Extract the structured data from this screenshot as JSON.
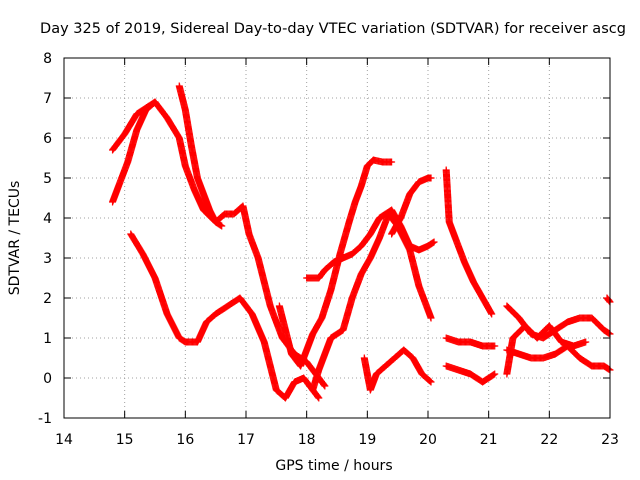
{
  "chart_data": {
    "type": "scatter",
    "title": "Day 325 of 2019, Sidereal Day-to-day VTEC variation (SDTVAR) for receiver ascg",
    "xlabel": "GPS time / hours",
    "ylabel": "SDTVAR / TECUs",
    "xlim": [
      14,
      23
    ],
    "ylim": [
      -1,
      8
    ],
    "xticks": [
      14,
      15,
      16,
      17,
      18,
      19,
      20,
      21,
      22,
      23
    ],
    "yticks": [
      -1,
      0,
      1,
      2,
      3,
      4,
      5,
      6,
      7,
      8
    ],
    "grid": true,
    "marker": "+",
    "color": "#ff0000",
    "series": [
      {
        "x": [
          14.8,
          15.0,
          15.2,
          15.3,
          15.5,
          15.7,
          15.9,
          16.0,
          16.15,
          16.3,
          16.5,
          16.65,
          16.8,
          16.95,
          17.05,
          17.2,
          17.4,
          17.6,
          17.8,
          18.0,
          18.2,
          18.3
        ],
        "y": [
          5.7,
          6.1,
          6.6,
          6.7,
          6.9,
          6.5,
          6.0,
          5.3,
          4.7,
          4.2,
          3.9,
          4.1,
          4.1,
          4.3,
          3.6,
          3.0,
          1.8,
          1.0,
          0.6,
          0.4,
          0.0,
          -0.2
        ]
      },
      {
        "x": [
          14.8,
          14.9,
          15.05,
          15.2,
          15.35,
          15.5
        ],
        "y": [
          4.4,
          4.8,
          5.4,
          6.2,
          6.7,
          6.9
        ]
      },
      {
        "x": [
          15.9,
          16.0,
          16.1,
          16.2,
          16.3,
          16.4,
          16.5,
          16.6
        ],
        "y": [
          7.3,
          6.7,
          5.8,
          5.0,
          4.6,
          4.2,
          3.9,
          3.8
        ]
      },
      {
        "x": [
          15.1,
          15.3,
          15.5,
          15.7,
          15.9,
          16.0,
          16.2,
          16.35,
          16.5,
          16.7,
          16.9,
          17.1,
          17.3,
          17.5,
          17.65,
          17.8,
          17.95,
          18.1,
          18.2
        ],
        "y": [
          3.6,
          3.1,
          2.5,
          1.6,
          1.0,
          0.9,
          0.9,
          1.4,
          1.6,
          1.8,
          2.0,
          1.6,
          0.9,
          -0.3,
          -0.5,
          -0.1,
          0.0,
          -0.3,
          -0.5
        ]
      },
      {
        "x": [
          17.55,
          17.65,
          17.75,
          17.9,
          18.0,
          18.1,
          18.25,
          18.4,
          18.55,
          18.7,
          18.8,
          18.9,
          19.0,
          19.1,
          19.25,
          19.4
        ],
        "y": [
          1.8,
          1.2,
          0.6,
          0.3,
          0.7,
          1.1,
          1.5,
          2.2,
          3.1,
          3.9,
          4.4,
          4.8,
          5.3,
          5.45,
          5.4,
          5.4
        ]
      },
      {
        "x": [
          18.0,
          18.1,
          18.2,
          18.3,
          18.45,
          18.6,
          18.75,
          18.9,
          19.05,
          19.2,
          19.4,
          19.55,
          19.7,
          19.85,
          20.0,
          20.1
        ],
        "y": [
          2.5,
          2.5,
          2.5,
          2.7,
          2.9,
          3.0,
          3.1,
          3.3,
          3.6,
          4.0,
          4.2,
          3.8,
          3.3,
          3.2,
          3.3,
          3.4
        ]
      },
      {
        "x": [
          18.1,
          18.2,
          18.3,
          18.4,
          18.5,
          18.6,
          18.75,
          18.9,
          19.05,
          19.2,
          19.35,
          19.5,
          19.7,
          19.85,
          20.0,
          20.05
        ],
        "y": [
          -0.3,
          0.2,
          0.6,
          1.0,
          1.1,
          1.2,
          2.0,
          2.6,
          3.0,
          3.5,
          4.1,
          3.8,
          3.2,
          2.3,
          1.7,
          1.5
        ]
      },
      {
        "x": [
          19.4,
          19.55,
          19.7,
          19.85,
          20.0,
          20.05
        ],
        "y": [
          3.6,
          4.0,
          4.6,
          4.9,
          5.0,
          5.0
        ]
      },
      {
        "x": [
          18.95,
          19.05,
          19.15,
          19.3,
          19.45,
          19.6,
          19.75,
          19.9,
          20.05
        ],
        "y": [
          0.5,
          -0.3,
          0.1,
          0.3,
          0.5,
          0.7,
          0.5,
          0.1,
          -0.1
        ]
      },
      {
        "x": [
          20.3,
          20.35,
          20.45,
          20.6,
          20.75,
          20.9,
          21.05
        ],
        "y": [
          5.2,
          3.9,
          3.5,
          2.9,
          2.4,
          2.0,
          1.6
        ]
      },
      {
        "x": [
          20.3,
          20.5,
          20.7,
          20.9,
          21.1
        ],
        "y": [
          1.0,
          0.9,
          0.9,
          0.8,
          0.8
        ]
      },
      {
        "x": [
          20.3,
          20.5,
          20.7,
          20.9,
          21.1
        ],
        "y": [
          0.3,
          0.2,
          0.1,
          -0.1,
          0.1
        ]
      },
      {
        "x": [
          21.3,
          21.5,
          21.7,
          21.9,
          22.1,
          22.3,
          22.5,
          22.7,
          22.9,
          23.0
        ],
        "y": [
          1.8,
          1.5,
          1.1,
          1.0,
          1.2,
          1.4,
          1.5,
          1.5,
          1.2,
          1.1
        ]
      },
      {
        "x": [
          21.3,
          21.5,
          21.7,
          21.9,
          22.1,
          22.3,
          22.5,
          22.7,
          22.9,
          23.0
        ],
        "y": [
          0.7,
          0.6,
          0.5,
          0.5,
          0.6,
          0.8,
          0.5,
          0.3,
          0.3,
          0.2
        ]
      },
      {
        "x": [
          21.3,
          21.4,
          21.6,
          21.8,
          22.0,
          22.2,
          22.4,
          22.6
        ],
        "y": [
          0.1,
          1.0,
          1.3,
          1.0,
          1.3,
          0.9,
          0.8,
          0.9
        ]
      },
      {
        "x": [
          22.95,
          23.0
        ],
        "y": [
          2.0,
          1.9
        ]
      }
    ]
  }
}
